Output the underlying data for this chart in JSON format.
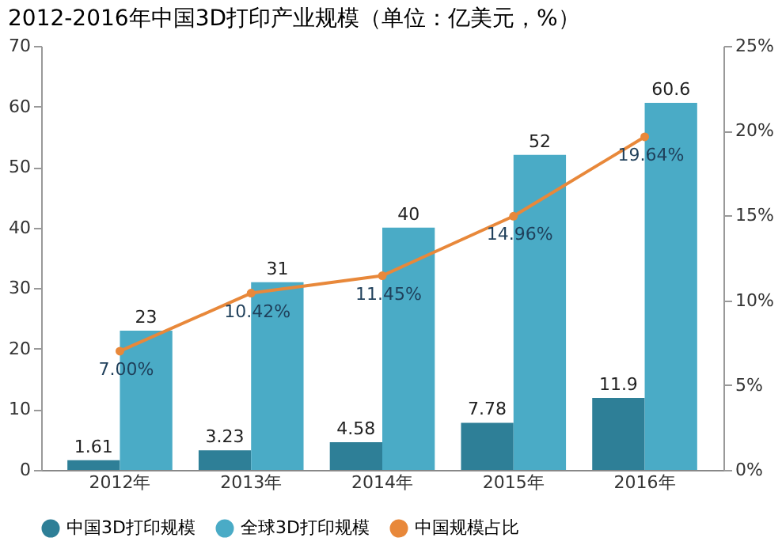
{
  "chart_data": {
    "type": "bar",
    "title": "2012-2016年中国3D打印产业规模（单位：亿美元，%）",
    "categories": [
      "2012年",
      "2013年",
      "2014年",
      "2015年",
      "2016年"
    ],
    "series": [
      {
        "name": "中国3D打印规模",
        "color": "#2e7f97",
        "values": [
          1.61,
          3.23,
          4.58,
          7.78,
          11.9
        ]
      },
      {
        "name": "全球3D打印规模",
        "color": "#4aabc6",
        "values": [
          23,
          31,
          40,
          52,
          60.6
        ]
      },
      {
        "name": "中国规模占比",
        "type": "line",
        "axis": "y2",
        "color": "#e8883a",
        "marker": "circle",
        "values": [
          7.0,
          10.42,
          11.45,
          14.96,
          19.64
        ],
        "value_labels": [
          "7.00%",
          "10.42%",
          "11.45%",
          "14.96%",
          "19.64%"
        ]
      }
    ],
    "ylim": [
      0,
      70
    ],
    "yticks": [
      0,
      10,
      20,
      30,
      40,
      50,
      60,
      70
    ],
    "y2lim": [
      0,
      25
    ],
    "y2ticks": [
      {
        "value": 0,
        "label": "0%"
      },
      {
        "value": 5,
        "label": "5%"
      },
      {
        "value": 10,
        "label": "10%"
      },
      {
        "value": 15,
        "label": "15%"
      },
      {
        "value": 20,
        "label": "20%"
      },
      {
        "value": 25,
        "label": "25%"
      }
    ],
    "data_labels": true,
    "legend": "bottom",
    "grid": false
  }
}
